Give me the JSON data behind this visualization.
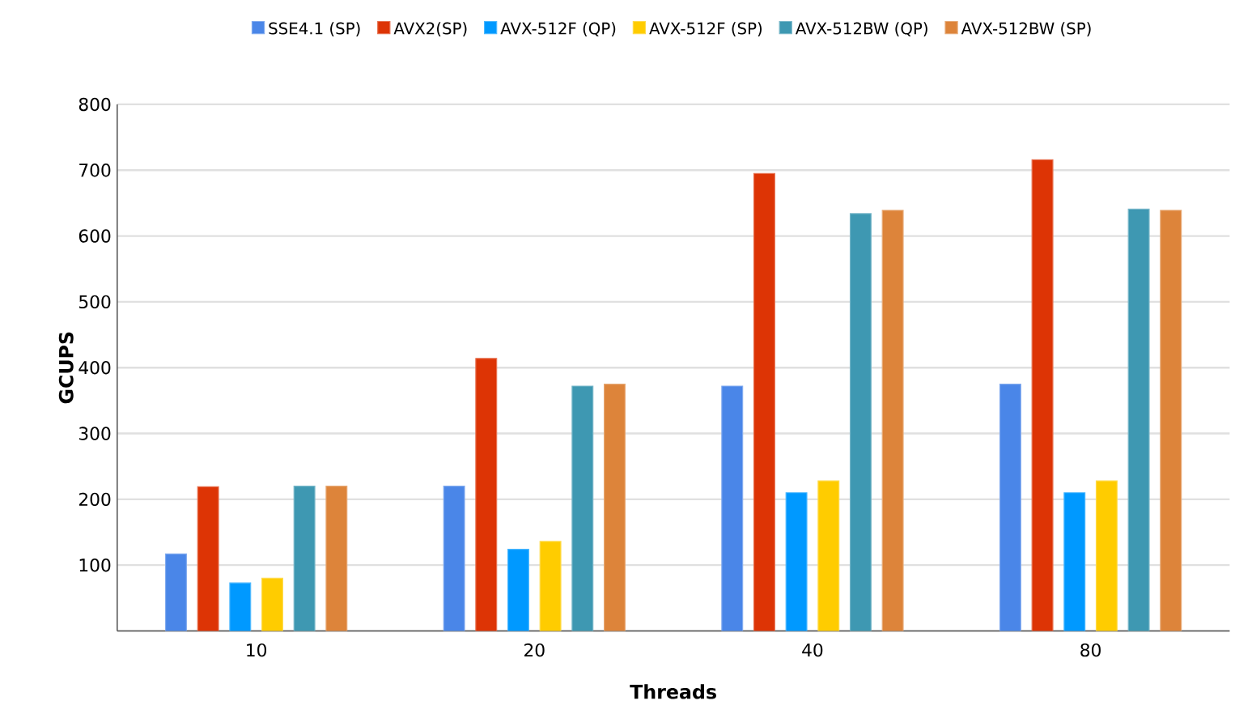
{
  "chart_data": {
    "type": "bar",
    "xlabel": "Threads",
    "ylabel": "GCUPS",
    "categories": [
      "10",
      "20",
      "40",
      "80"
    ],
    "series": [
      {
        "name": "SSE4.1 (SP)",
        "color": "#4a86e8",
        "values": [
          117,
          220,
          372,
          375
        ]
      },
      {
        "name": "AVX2(SP)",
        "color": "#dd3405",
        "values": [
          219,
          414,
          695,
          716
        ]
      },
      {
        "name": "AVX-512F (QP)",
        "color": "#0099ff",
        "values": [
          73,
          124,
          210,
          210
        ]
      },
      {
        "name": "AVX-512F (SP)",
        "color": "#ffcc00",
        "values": [
          80,
          136,
          228,
          228
        ]
      },
      {
        "name": "AVX-512BW (QP)",
        "color": "#3e98b2",
        "values": [
          220,
          372,
          634,
          641
        ]
      },
      {
        "name": "AVX-512BW (SP)",
        "color": "#dd843a",
        "values": [
          220,
          375,
          639,
          639
        ]
      }
    ],
    "ylim": [
      0,
      800
    ],
    "yticks": [
      {
        "value": 0,
        "label": null
      },
      100,
      200,
      300,
      400,
      500,
      600,
      700,
      800
    ],
    "grid": "y",
    "legend": "top"
  }
}
